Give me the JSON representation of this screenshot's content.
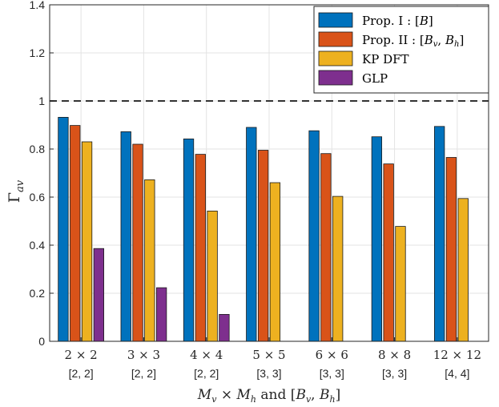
{
  "chart_data": {
    "type": "bar",
    "title": "",
    "ylabel": "Γ_av",
    "xlabel": "M_v × M_h and [B_v, B_h]",
    "xlabel_parts": {
      "Mv": "M",
      "Mv_sub": "v",
      "times": " × ",
      "Mh": "M",
      "Mh_sub": "h",
      "and": " and ",
      "bracket": "[",
      "Bv": "B",
      "Bv_sub": "v",
      "comma": ", ",
      "Bh": "B",
      "Bh_sub": "h",
      "close": "]"
    },
    "ylabel_parts": {
      "base": "Γ",
      "sub": "av"
    },
    "ylim": [
      0,
      1.4
    ],
    "yticks": [
      0,
      0.2,
      0.4,
      0.6,
      0.8,
      1,
      1.2,
      1.4
    ],
    "ytick_labels": [
      "0",
      "0.2",
      "0.4",
      "0.6",
      "0.8",
      "1",
      "1.2",
      "1.4"
    ],
    "grid": true,
    "reference_line": {
      "y": 1,
      "style": "dashed"
    },
    "categories": [
      "2 × 2",
      "3 × 3",
      "4 × 4",
      "5 × 5",
      "6 × 6",
      "8 × 8",
      "12 × 12"
    ],
    "category_sublabels": [
      "[2, 2]",
      "[2, 2]",
      "[2, 2]",
      "[3, 3]",
      "[3, 3]",
      "[3, 3]",
      "[4, 4]"
    ],
    "series": [
      {
        "name": "Prop. I : [B]",
        "color": "#0072BD",
        "values": [
          0.932,
          0.872,
          0.842,
          0.89,
          0.876,
          0.851,
          0.894
        ]
      },
      {
        "name": "Prop. II : [B_v, B_h]",
        "color": "#D95319",
        "values": [
          0.898,
          0.82,
          0.778,
          0.795,
          0.781,
          0.738,
          0.765
        ]
      },
      {
        "name": "KP DFT",
        "color": "#EDB120",
        "values": [
          0.83,
          0.672,
          0.542,
          0.66,
          0.603,
          0.478,
          0.594
        ]
      },
      {
        "name": "GLP",
        "color": "#7E2F8E",
        "values": [
          0.386,
          0.223,
          0.112,
          0,
          0,
          0,
          0
        ]
      }
    ],
    "legend": {
      "placement": "top-right",
      "entries": [
        {
          "text": "Prop. I : [",
          "it": "B",
          "tail": "]"
        },
        {
          "text": "Prop. II : [",
          "it": "B",
          "sub": "v",
          "mid": ", ",
          "it2": "B",
          "sub2": "h",
          "tail": "]"
        },
        {
          "text": "KP DFT"
        },
        {
          "text": "GLP"
        }
      ]
    }
  }
}
